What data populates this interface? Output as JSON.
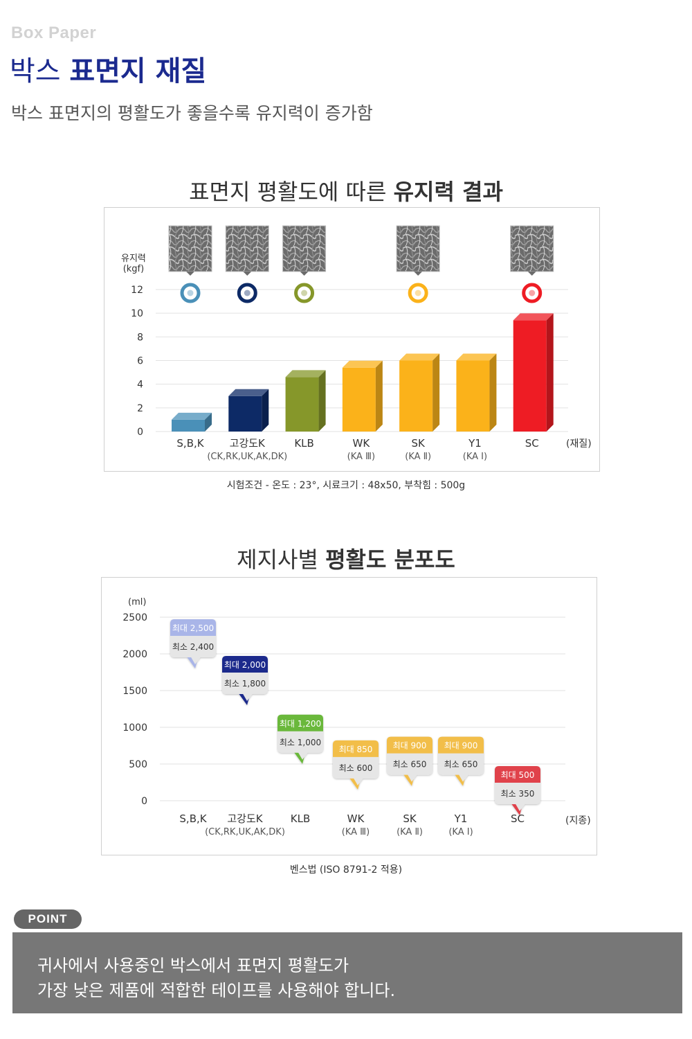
{
  "header": {
    "eyebrow": "Box Paper",
    "title_light": "박스",
    "title_bold": "표면지 재질",
    "subtitle": "박스 표면지의 평활도가 좋을수록 유지력이 증가함"
  },
  "colors": {
    "title_blue": "#1b2a8f",
    "sbk": "#4a90b8",
    "gokangdo": "#0d2a66",
    "klb": "#86972a",
    "yellow": "#fbb21a",
    "sc": "#ee1c24",
    "point_bg": "#777777"
  },
  "chart1": {
    "title_light": "표면지 평활도에 따른",
    "title_bold": "유지력 결과",
    "note": "시험조건 - 온도 : 23°, 시료크기 : 48x50, 부착힘 : 500g",
    "y_unit_line1": "유지력",
    "y_unit_line2": "(kgf)",
    "x_unit": "(재질)",
    "micrograph_icon": "paper-fiber-micrograph-icon"
  },
  "chart2": {
    "title_light": "제지사별",
    "title_bold": "평활도 분포도",
    "note": "벤스법 (ISO 8791-2 적용)",
    "y_unit": "(ml)",
    "x_unit": "(지종)",
    "max_prefix": "최대",
    "min_prefix": "최소"
  },
  "chart_data": [
    {
      "type": "bar",
      "title": "표면지 평활도에 따른 유지력 결과",
      "ylabel": "유지력 (kgf)",
      "xlabel": "(재질)",
      "ylim": [
        0,
        12
      ],
      "yticks": [
        "0",
        "2",
        "4",
        "6",
        "8",
        "10",
        "12"
      ],
      "categories": [
        "S,B,K",
        "고강도K",
        "KLB",
        "WK",
        "SK",
        "Y1",
        "SC"
      ],
      "subcategories": [
        "",
        "(CK,RK,UK,AK,DK)",
        "",
        "(KA Ⅲ)",
        "(KA Ⅱ)",
        "(KA Ⅰ)",
        ""
      ],
      "values": [
        1.0,
        3.0,
        4.6,
        5.4,
        6.0,
        6.0,
        9.4
      ],
      "colors": [
        "#4a90b8",
        "#0d2a66",
        "#86972a",
        "#fbb21a",
        "#fbb21a",
        "#fbb21a",
        "#ee1c24"
      ],
      "micrographs": [
        true,
        true,
        true,
        false,
        true,
        false,
        true
      ],
      "markers": [
        true,
        true,
        true,
        false,
        true,
        false,
        true
      ]
    },
    {
      "type": "range",
      "title": "제지사별 평활도 분포도",
      "ylabel": "(ml)",
      "xlabel": "(지종)",
      "ylim": [
        0,
        2500
      ],
      "yticks": [
        "0",
        "500",
        "1000",
        "1500",
        "2000",
        "2500"
      ],
      "categories": [
        "S,B,K",
        "고강도K",
        "KLB",
        "WK",
        "SK",
        "Y1",
        "SC"
      ],
      "subcategories": [
        "",
        "(CK,RK,UK,AK,DK)",
        "",
        "(KA Ⅲ)",
        "(KA Ⅱ)",
        "(KA Ⅰ)",
        ""
      ],
      "max": [
        2500,
        2000,
        1200,
        850,
        900,
        900,
        500
      ],
      "min": [
        2400,
        1800,
        1000,
        600,
        650,
        650,
        350
      ],
      "max_labels": [
        "2,500",
        "2,000",
        "1,200",
        "850",
        "900",
        "900",
        "500"
      ],
      "min_labels": [
        "2,400",
        "1,800",
        "1,000",
        "600",
        "650",
        "650",
        "350"
      ],
      "colors": [
        "#a9b5e8",
        "#1a2a8c",
        "#6ab83a",
        "#f2be4a",
        "#f2be4a",
        "#f2be4a",
        "#e0434b"
      ]
    }
  ],
  "point": {
    "badge": "POINT",
    "line1": "귀사에서 사용중인 박스에서 표면지 평활도가",
    "line2": "가장 낮은 제품에 적합한 테이프를 사용해야 합니다."
  }
}
